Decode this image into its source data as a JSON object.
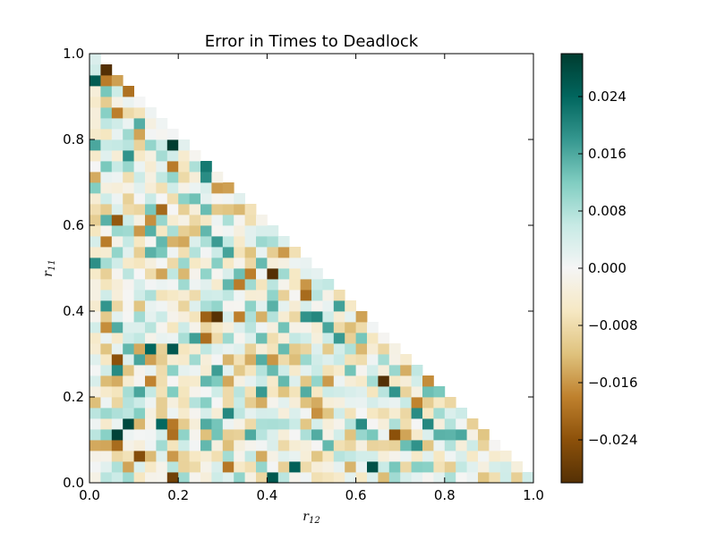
{
  "chart_data": {
    "type": "heatmap",
    "title": "Error in Times to Deadlock",
    "xlabel": "r",
    "xlabel_sub": "12",
    "ylabel": "r",
    "ylabel_sub": "11",
    "xlim": [
      0.0,
      1.0
    ],
    "ylim": [
      0.0,
      1.0
    ],
    "x_ticks": [
      "0.0",
      "0.2",
      "0.4",
      "0.6",
      "0.8",
      "1.0"
    ],
    "y_ticks": [
      "0.0",
      "0.2",
      "0.4",
      "0.6",
      "0.8",
      "1.0"
    ],
    "grid_cells": 40,
    "domain": "lower-left triangle, r11 + r12 <= 1",
    "colormap": [
      "#543005",
      "#8c510a",
      "#bf812d",
      "#dfc27d",
      "#f6e8c3",
      "#f5f5f5",
      "#c7eae5",
      "#80cdc1",
      "#35978f",
      "#01665e",
      "#003c30"
    ],
    "colorbar": {
      "range": [
        -0.03,
        0.03
      ],
      "ticks": [
        {
          "value": -0.024,
          "label": "−0.024"
        },
        {
          "value": -0.016,
          "label": "−0.016"
        },
        {
          "value": -0.008,
          "label": "−0.008"
        },
        {
          "value": 0.0,
          "label": "0.000"
        },
        {
          "value": 0.008,
          "label": "0.008"
        },
        {
          "value": 0.016,
          "label": "0.016"
        },
        {
          "value": 0.024,
          "label": "0.024"
        }
      ]
    },
    "notable_cells": [
      {
        "x": 0.0625,
        "y": 0.1125,
        "value": 0.029
      },
      {
        "x": 0.1875,
        "y": 0.0125,
        "value": -0.027
      },
      {
        "x": 0.1875,
        "y": 0.3125,
        "value": 0.026
      },
      {
        "x": 0.1375,
        "y": 0.3125,
        "value": 0.024
      },
      {
        "x": 0.6375,
        "y": 0.0375,
        "value": 0.027
      },
      {
        "x": 0.4125,
        "y": 0.0125,
        "value": 0.026
      },
      {
        "x": 0.0625,
        "y": 0.2875,
        "value": -0.024
      },
      {
        "x": 0.2625,
        "y": 0.3875,
        "value": -0.022
      },
      {
        "x": 0.6875,
        "y": 0.1125,
        "value": -0.024
      }
    ]
  }
}
